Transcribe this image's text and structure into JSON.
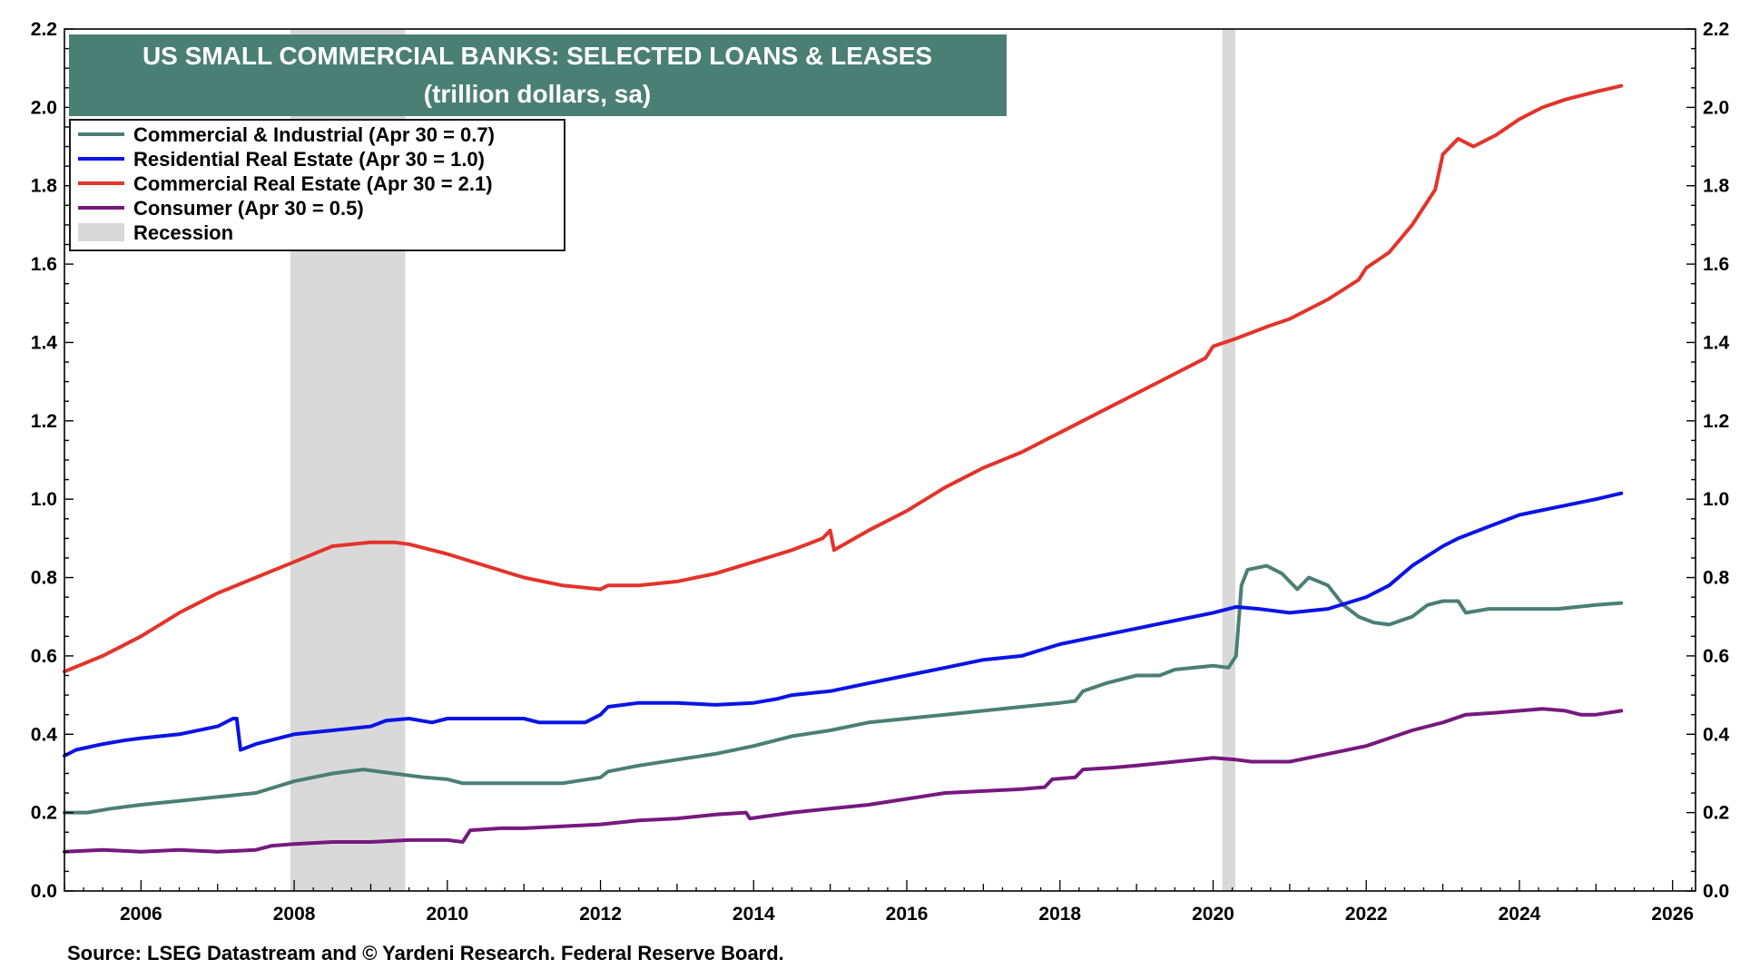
{
  "chart_data": {
    "type": "line",
    "title": "US SMALL COMMERCIAL BANKS: SELECTED LOANS & LEASES",
    "subtitle": "(trillion dollars, sa)",
    "source": "Source: LSEG Datastream and © Yardeni Research. Federal Reserve Board.",
    "xlim": [
      2005,
      2026.3
    ],
    "ylim": [
      0,
      2.2
    ],
    "x_ticks": [
      2006,
      2008,
      2010,
      2012,
      2014,
      2016,
      2018,
      2020,
      2022,
      2024,
      2026
    ],
    "y_ticks": [
      "0.0",
      "0.2",
      "0.4",
      "0.6",
      "0.8",
      "1.0",
      "1.2",
      "1.4",
      "1.6",
      "1.8",
      "2.0",
      "2.2"
    ],
    "y_axis_both_sides": true,
    "grid": false,
    "legend_position": "top-left",
    "recessions": [
      {
        "start": 2007.95,
        "end": 2009.45
      },
      {
        "start": 2020.12,
        "end": 2020.29
      }
    ],
    "recession_color": "#d9d9d9",
    "legend": [
      {
        "label": "Commercial & Industrial (Apr 30 = 0.7)",
        "color": "#4a7f74",
        "kind": "line"
      },
      {
        "label": "Residential Real Estate (Apr 30 = 1.0)",
        "color": "#0a14e6",
        "kind": "line"
      },
      {
        "label": "Commercial Real Estate (Apr 30 = 2.1)",
        "color": "#e4332a",
        "kind": "line"
      },
      {
        "label": "Consumer (Apr 30 = 0.5)",
        "color": "#76197f",
        "kind": "line"
      },
      {
        "label": "Recession",
        "color": "#d9d9d9",
        "kind": "box"
      }
    ],
    "series": [
      {
        "name": "Commercial & Industrial",
        "color": "#4a7f74",
        "points": [
          [
            2005.0,
            0.2
          ],
          [
            2005.3,
            0.2
          ],
          [
            2005.6,
            0.21
          ],
          [
            2006.0,
            0.22
          ],
          [
            2006.5,
            0.23
          ],
          [
            2007.0,
            0.24
          ],
          [
            2007.5,
            0.25
          ],
          [
            2008.0,
            0.28
          ],
          [
            2008.5,
            0.3
          ],
          [
            2008.9,
            0.31
          ],
          [
            2009.3,
            0.3
          ],
          [
            2009.7,
            0.29
          ],
          [
            2010.0,
            0.285
          ],
          [
            2010.2,
            0.275
          ],
          [
            2010.7,
            0.275
          ],
          [
            2011.0,
            0.275
          ],
          [
            2011.5,
            0.275
          ],
          [
            2012.0,
            0.29
          ],
          [
            2012.1,
            0.305
          ],
          [
            2012.5,
            0.32
          ],
          [
            2013.0,
            0.335
          ],
          [
            2013.5,
            0.35
          ],
          [
            2014.0,
            0.37
          ],
          [
            2014.5,
            0.395
          ],
          [
            2015.0,
            0.41
          ],
          [
            2015.5,
            0.43
          ],
          [
            2016.0,
            0.44
          ],
          [
            2016.5,
            0.45
          ],
          [
            2017.0,
            0.46
          ],
          [
            2017.5,
            0.47
          ],
          [
            2018.0,
            0.48
          ],
          [
            2018.2,
            0.485
          ],
          [
            2018.3,
            0.51
          ],
          [
            2018.6,
            0.53
          ],
          [
            2019.0,
            0.55
          ],
          [
            2019.3,
            0.55
          ],
          [
            2019.5,
            0.565
          ],
          [
            2020.0,
            0.575
          ],
          [
            2020.2,
            0.57
          ],
          [
            2020.3,
            0.6
          ],
          [
            2020.37,
            0.78
          ],
          [
            2020.45,
            0.82
          ],
          [
            2020.7,
            0.83
          ],
          [
            2020.9,
            0.81
          ],
          [
            2021.1,
            0.77
          ],
          [
            2021.25,
            0.8
          ],
          [
            2021.5,
            0.78
          ],
          [
            2021.7,
            0.73
          ],
          [
            2021.9,
            0.7
          ],
          [
            2022.1,
            0.685
          ],
          [
            2022.3,
            0.68
          ],
          [
            2022.6,
            0.7
          ],
          [
            2022.8,
            0.73
          ],
          [
            2023.0,
            0.74
          ],
          [
            2023.2,
            0.74
          ],
          [
            2023.3,
            0.71
          ],
          [
            2023.6,
            0.72
          ],
          [
            2024.0,
            0.72
          ],
          [
            2024.5,
            0.72
          ],
          [
            2025.0,
            0.73
          ],
          [
            2025.33,
            0.735
          ]
        ]
      },
      {
        "name": "Residential Real Estate",
        "color": "#0a14e6",
        "points": [
          [
            2005.0,
            0.345
          ],
          [
            2005.15,
            0.36
          ],
          [
            2005.5,
            0.375
          ],
          [
            2005.8,
            0.385
          ],
          [
            2006.0,
            0.39
          ],
          [
            2006.5,
            0.4
          ],
          [
            2007.0,
            0.42
          ],
          [
            2007.2,
            0.44
          ],
          [
            2007.25,
            0.44
          ],
          [
            2007.3,
            0.36
          ],
          [
            2007.5,
            0.375
          ],
          [
            2008.0,
            0.4
          ],
          [
            2008.5,
            0.41
          ],
          [
            2009.0,
            0.42
          ],
          [
            2009.2,
            0.435
          ],
          [
            2009.5,
            0.44
          ],
          [
            2009.8,
            0.43
          ],
          [
            2010.0,
            0.44
          ],
          [
            2010.5,
            0.44
          ],
          [
            2011.0,
            0.44
          ],
          [
            2011.2,
            0.43
          ],
          [
            2011.5,
            0.43
          ],
          [
            2011.8,
            0.43
          ],
          [
            2012.0,
            0.45
          ],
          [
            2012.1,
            0.47
          ],
          [
            2012.5,
            0.48
          ],
          [
            2013.0,
            0.48
          ],
          [
            2013.5,
            0.475
          ],
          [
            2014.0,
            0.48
          ],
          [
            2014.3,
            0.49
          ],
          [
            2014.5,
            0.5
          ],
          [
            2015.0,
            0.51
          ],
          [
            2015.5,
            0.53
          ],
          [
            2016.0,
            0.55
          ],
          [
            2016.5,
            0.57
          ],
          [
            2017.0,
            0.59
          ],
          [
            2017.5,
            0.6
          ],
          [
            2018.0,
            0.63
          ],
          [
            2018.5,
            0.65
          ],
          [
            2019.0,
            0.67
          ],
          [
            2019.5,
            0.69
          ],
          [
            2020.0,
            0.71
          ],
          [
            2020.3,
            0.725
          ],
          [
            2020.6,
            0.72
          ],
          [
            2021.0,
            0.71
          ],
          [
            2021.5,
            0.72
          ],
          [
            2022.0,
            0.75
          ],
          [
            2022.3,
            0.78
          ],
          [
            2022.6,
            0.83
          ],
          [
            2023.0,
            0.88
          ],
          [
            2023.2,
            0.9
          ],
          [
            2023.6,
            0.93
          ],
          [
            2024.0,
            0.96
          ],
          [
            2024.5,
            0.98
          ],
          [
            2025.0,
            1.0
          ],
          [
            2025.33,
            1.015
          ]
        ]
      },
      {
        "name": "Commercial Real Estate",
        "color": "#e4332a",
        "points": [
          [
            2005.0,
            0.56
          ],
          [
            2005.5,
            0.6
          ],
          [
            2006.0,
            0.65
          ],
          [
            2006.5,
            0.71
          ],
          [
            2007.0,
            0.76
          ],
          [
            2007.5,
            0.8
          ],
          [
            2008.0,
            0.84
          ],
          [
            2008.5,
            0.88
          ],
          [
            2009.0,
            0.89
          ],
          [
            2009.3,
            0.89
          ],
          [
            2009.5,
            0.885
          ],
          [
            2010.0,
            0.86
          ],
          [
            2010.5,
            0.83
          ],
          [
            2011.0,
            0.8
          ],
          [
            2011.5,
            0.78
          ],
          [
            2012.0,
            0.77
          ],
          [
            2012.1,
            0.78
          ],
          [
            2012.5,
            0.78
          ],
          [
            2013.0,
            0.79
          ],
          [
            2013.5,
            0.81
          ],
          [
            2014.0,
            0.84
          ],
          [
            2014.5,
            0.87
          ],
          [
            2014.9,
            0.9
          ],
          [
            2015.0,
            0.92
          ],
          [
            2015.05,
            0.87
          ],
          [
            2015.5,
            0.92
          ],
          [
            2016.0,
            0.97
          ],
          [
            2016.5,
            1.03
          ],
          [
            2017.0,
            1.08
          ],
          [
            2017.5,
            1.12
          ],
          [
            2017.8,
            1.15
          ],
          [
            2018.0,
            1.17
          ],
          [
            2018.5,
            1.22
          ],
          [
            2019.0,
            1.27
          ],
          [
            2019.5,
            1.32
          ],
          [
            2019.9,
            1.36
          ],
          [
            2020.0,
            1.39
          ],
          [
            2020.3,
            1.41
          ],
          [
            2020.7,
            1.44
          ],
          [
            2021.0,
            1.46
          ],
          [
            2021.5,
            1.51
          ],
          [
            2021.9,
            1.56
          ],
          [
            2022.0,
            1.59
          ],
          [
            2022.3,
            1.63
          ],
          [
            2022.6,
            1.7
          ],
          [
            2022.9,
            1.79
          ],
          [
            2023.0,
            1.88
          ],
          [
            2023.2,
            1.92
          ],
          [
            2023.4,
            1.9
          ],
          [
            2023.7,
            1.93
          ],
          [
            2024.0,
            1.97
          ],
          [
            2024.3,
            2.0
          ],
          [
            2024.6,
            2.02
          ],
          [
            2025.0,
            2.04
          ],
          [
            2025.33,
            2.055
          ]
        ]
      },
      {
        "name": "Consumer",
        "color": "#76197f",
        "points": [
          [
            2005.0,
            0.1
          ],
          [
            2005.5,
            0.105
          ],
          [
            2006.0,
            0.1
          ],
          [
            2006.5,
            0.105
          ],
          [
            2007.0,
            0.1
          ],
          [
            2007.5,
            0.105
          ],
          [
            2007.7,
            0.115
          ],
          [
            2008.0,
            0.12
          ],
          [
            2008.5,
            0.125
          ],
          [
            2009.0,
            0.125
          ],
          [
            2009.5,
            0.13
          ],
          [
            2010.0,
            0.13
          ],
          [
            2010.2,
            0.125
          ],
          [
            2010.3,
            0.155
          ],
          [
            2010.7,
            0.16
          ],
          [
            2011.0,
            0.16
          ],
          [
            2011.5,
            0.165
          ],
          [
            2012.0,
            0.17
          ],
          [
            2012.5,
            0.18
          ],
          [
            2013.0,
            0.185
          ],
          [
            2013.5,
            0.195
          ],
          [
            2013.9,
            0.2
          ],
          [
            2013.95,
            0.185
          ],
          [
            2014.5,
            0.2
          ],
          [
            2015.0,
            0.21
          ],
          [
            2015.5,
            0.22
          ],
          [
            2016.0,
            0.235
          ],
          [
            2016.5,
            0.25
          ],
          [
            2017.0,
            0.255
          ],
          [
            2017.5,
            0.26
          ],
          [
            2017.8,
            0.265
          ],
          [
            2017.9,
            0.285
          ],
          [
            2018.2,
            0.29
          ],
          [
            2018.3,
            0.31
          ],
          [
            2018.7,
            0.315
          ],
          [
            2019.0,
            0.32
          ],
          [
            2019.5,
            0.33
          ],
          [
            2020.0,
            0.34
          ],
          [
            2020.3,
            0.335
          ],
          [
            2020.5,
            0.33
          ],
          [
            2021.0,
            0.33
          ],
          [
            2021.5,
            0.35
          ],
          [
            2022.0,
            0.37
          ],
          [
            2022.3,
            0.39
          ],
          [
            2022.6,
            0.41
          ],
          [
            2023.0,
            0.43
          ],
          [
            2023.3,
            0.45
          ],
          [
            2023.7,
            0.455
          ],
          [
            2024.0,
            0.46
          ],
          [
            2024.3,
            0.465
          ],
          [
            2024.6,
            0.46
          ],
          [
            2024.8,
            0.45
          ],
          [
            2025.0,
            0.45
          ],
          [
            2025.33,
            0.46
          ]
        ]
      }
    ]
  }
}
